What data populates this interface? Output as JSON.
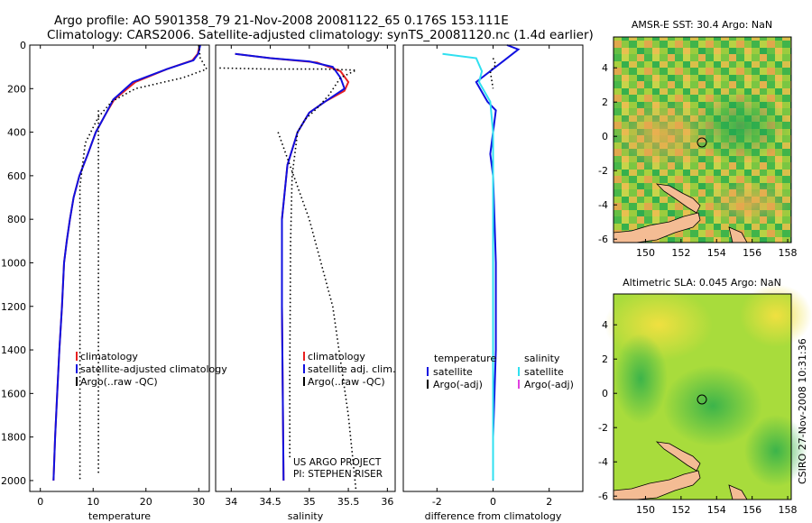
{
  "title": {
    "line1": "Argo profile: AO 5901358_79 21-Nov-2008 20081122_65 0.176S 153.111E",
    "line2": "Climatology: CARS2006. Satellite-adjusted climatology: synTS_20081120.nc (1.4d earlier)"
  },
  "side_text": "CSIRO 27-Nov-2008 10:31:36",
  "colors": {
    "red": "#e82020",
    "blue": "#1010e0",
    "cyan": "#30e0f0",
    "magenta": "#e040e0",
    "black": "#000000"
  },
  "chart_data": [
    {
      "type": "line",
      "id": "temperature",
      "xlabel": "temperature",
      "ylabel": "",
      "xlim": [
        -2,
        32
      ],
      "ylim": [
        0,
        2050
      ],
      "y_reversed": true,
      "xticks": [
        0,
        10,
        20,
        30
      ],
      "yticks": [
        0,
        200,
        400,
        600,
        800,
        1000,
        1200,
        1400,
        1600,
        1800,
        2000
      ],
      "legend": [
        "climatology",
        "satellite-adjusted climatology",
        "Argo(..raw -QC)"
      ],
      "series": [
        {
          "name": "climatology",
          "color": "#e82020",
          "style": "solid",
          "points": [
            [
              30.2,
              0
            ],
            [
              29.8,
              40
            ],
            [
              28.8,
              70
            ],
            [
              24,
              110
            ],
            [
              18,
              170
            ],
            [
              14,
              250
            ],
            [
              12.3,
              320
            ],
            [
              10.5,
              400
            ],
            [
              9,
              500
            ],
            [
              7.4,
              600
            ],
            [
              6.3,
              700
            ],
            [
              5.6,
              800
            ],
            [
              5,
              900
            ],
            [
              4.5,
              1000
            ],
            [
              4.1,
              1200
            ],
            [
              3.6,
              1400
            ],
            [
              3.2,
              1600
            ],
            [
              2.8,
              1800
            ],
            [
              2.5,
              2000
            ]
          ]
        },
        {
          "name": "satellite-adjusted climatology",
          "color": "#1010e0",
          "style": "solid",
          "points": [
            [
              30.3,
              0
            ],
            [
              29.9,
              40
            ],
            [
              29,
              70
            ],
            [
              24,
              110
            ],
            [
              17.5,
              170
            ],
            [
              13.8,
              250
            ],
            [
              12.3,
              320
            ],
            [
              10.5,
              400
            ],
            [
              9,
              500
            ],
            [
              7.4,
              600
            ],
            [
              6.3,
              700
            ],
            [
              5.6,
              800
            ],
            [
              5,
              900
            ],
            [
              4.5,
              1000
            ],
            [
              4.1,
              1200
            ],
            [
              3.6,
              1400
            ],
            [
              3.2,
              1600
            ],
            [
              2.8,
              1800
            ],
            [
              2.5,
              2000
            ]
          ]
        },
        {
          "name": "Argo(..raw -QC)",
          "color": "#000000",
          "style": "dotted",
          "points": [
            [
              30,
              0
            ],
            [
              30.3,
              60
            ],
            [
              31.5,
              110
            ],
            [
              27,
              150
            ],
            [
              18,
              200
            ],
            [
              13.5,
              260
            ],
            [
              11,
              330
            ],
            [
              8.5,
              450
            ],
            [
              7.5,
              650
            ],
            [
              7.5,
              1000
            ],
            [
              7.5,
              1500
            ],
            [
              7.5,
              2000
            ]
          ]
        },
        {
          "name": "Argo(..raw -QC)",
          "color": "#000000",
          "style": "dotted",
          "points": [
            [
              11,
              300
            ],
            [
              11,
              600
            ],
            [
              11,
              1200
            ],
            [
              11,
              1800
            ],
            [
              11,
              1970
            ]
          ]
        }
      ]
    },
    {
      "type": "line",
      "id": "salinity",
      "xlabel": "salinity",
      "ylabel": "",
      "xlim": [
        33.8,
        36.1
      ],
      "ylim": [
        0,
        2050
      ],
      "y_reversed": true,
      "xticks": [
        34,
        34.5,
        35,
        35.5,
        36
      ],
      "yticks": [],
      "legend": [
        "climatology",
        "satellite adj. clim.",
        "Argo(..raw -QC)"
      ],
      "annotations": [
        "US ARGO PROJECT",
        "PI: STEPHEN RISER"
      ],
      "series": [
        {
          "name": "climatology",
          "color": "#e82020",
          "style": "solid",
          "points": [
            [
              34.05,
              40
            ],
            [
              34.5,
              60
            ],
            [
              35.1,
              80
            ],
            [
              35.4,
              120
            ],
            [
              35.5,
              170
            ],
            [
              35.45,
              210
            ],
            [
              35.2,
              260
            ],
            [
              35,
              310
            ],
            [
              34.85,
              400
            ],
            [
              34.72,
              550
            ],
            [
              34.65,
              800
            ],
            [
              34.65,
              1200
            ],
            [
              34.66,
              1600
            ],
            [
              34.67,
              2000
            ]
          ]
        },
        {
          "name": "satellite adj. clim.",
          "color": "#1010e0",
          "style": "solid",
          "points": [
            [
              34.05,
              40
            ],
            [
              34.5,
              60
            ],
            [
              35,
              75
            ],
            [
              35.3,
              100
            ],
            [
              35.4,
              150
            ],
            [
              35.45,
              200
            ],
            [
              35.2,
              260
            ],
            [
              35,
              310
            ],
            [
              34.85,
              400
            ],
            [
              34.72,
              550
            ],
            [
              34.65,
              800
            ],
            [
              34.65,
              1200
            ],
            [
              34.66,
              1600
            ],
            [
              34.67,
              2000
            ]
          ]
        },
        {
          "name": "Argo(..raw -QC)",
          "color": "#000000",
          "style": "dotted",
          "points": [
            [
              33.85,
              105
            ],
            [
              34.5,
              110
            ],
            [
              35.2,
              110
            ],
            [
              35.6,
              115
            ],
            [
              35.4,
              150
            ],
            [
              35.25,
              230
            ],
            [
              35.1,
              290
            ],
            [
              34.95,
              340
            ],
            [
              34.85,
              400
            ],
            [
              34.78,
              600
            ],
            [
              34.76,
              900
            ],
            [
              34.75,
              1500
            ],
            [
              34.75,
              1900
            ]
          ]
        },
        {
          "name": "Argo(..raw -QC)",
          "color": "#000000",
          "style": "dotted",
          "points": [
            [
              34.6,
              400
            ],
            [
              35,
              800
            ],
            [
              35.3,
              1200
            ],
            [
              35.5,
              1700
            ],
            [
              35.6,
              2050
            ]
          ]
        }
      ]
    },
    {
      "type": "line",
      "id": "difference",
      "xlabel": "difference from climatology",
      "ylabel": "",
      "xlim": [
        -3.2,
        3.2
      ],
      "ylim": [
        0,
        2050
      ],
      "y_reversed": true,
      "xticks": [
        -2,
        0,
        2
      ],
      "yticks": [],
      "legend_left_title": "temperature",
      "legend_right_title": "salinity",
      "legend_left": [
        "satellite",
        "Argo(-adj)"
      ],
      "legend_right": [
        "satellite",
        "Argo(-adj)"
      ],
      "series": [
        {
          "name": "temperature satellite",
          "color": "#1010e0",
          "style": "solid",
          "points": [
            [
              0.5,
              0
            ],
            [
              0.9,
              20
            ],
            [
              0.4,
              70
            ],
            [
              -0.6,
              170
            ],
            [
              -0.2,
              260
            ],
            [
              0.1,
              300
            ],
            [
              0,
              400
            ],
            [
              -0.1,
              500
            ],
            [
              0,
              600
            ],
            [
              0.05,
              800
            ],
            [
              0.1,
              1000
            ],
            [
              0.1,
              1200
            ],
            [
              0.1,
              1400
            ],
            [
              0.05,
              1600
            ],
            [
              0,
              1800
            ],
            [
              0,
              2000
            ]
          ]
        },
        {
          "name": "salinity satellite",
          "color": "#30e0f0",
          "style": "solid",
          "points": [
            [
              -1.8,
              40
            ],
            [
              -0.6,
              60
            ],
            [
              -0.4,
              120
            ],
            [
              -0.5,
              170
            ],
            [
              -0.1,
              260
            ],
            [
              0,
              400
            ],
            [
              0,
              800
            ],
            [
              0,
              1200
            ],
            [
              0,
              1600
            ],
            [
              0,
              2000
            ]
          ]
        },
        {
          "name": "Argo(-adj)",
          "color": "#000000",
          "style": "dotted",
          "points": [
            [
              0,
              60
            ],
            [
              0.1,
              90
            ],
            [
              -0.1,
              120
            ],
            [
              0,
              200
            ]
          ]
        }
      ]
    },
    {
      "type": "heatmap",
      "id": "sst",
      "title": "AMSR-E SST: 30.4  Argo: NaN",
      "xlim": [
        148.2,
        158.2
      ],
      "ylim": [
        -6.2,
        5.8
      ],
      "xticks": [
        150,
        152,
        154,
        156,
        158
      ],
      "yticks": [
        -6,
        -4,
        -2,
        0,
        2,
        4
      ],
      "marker": [
        153.1,
        -0.18
      ]
    },
    {
      "type": "heatmap",
      "id": "sla",
      "title": "Altimetric SLA: 0.045  Argo: NaN",
      "xlim": [
        148.2,
        158.2
      ],
      "ylim": [
        -6.2,
        5.8
      ],
      "xticks": [
        150,
        152,
        154,
        156,
        158
      ],
      "yticks": [
        -6,
        -4,
        -2,
        0,
        2,
        4
      ],
      "marker": [
        153.1,
        -0.18
      ]
    }
  ]
}
